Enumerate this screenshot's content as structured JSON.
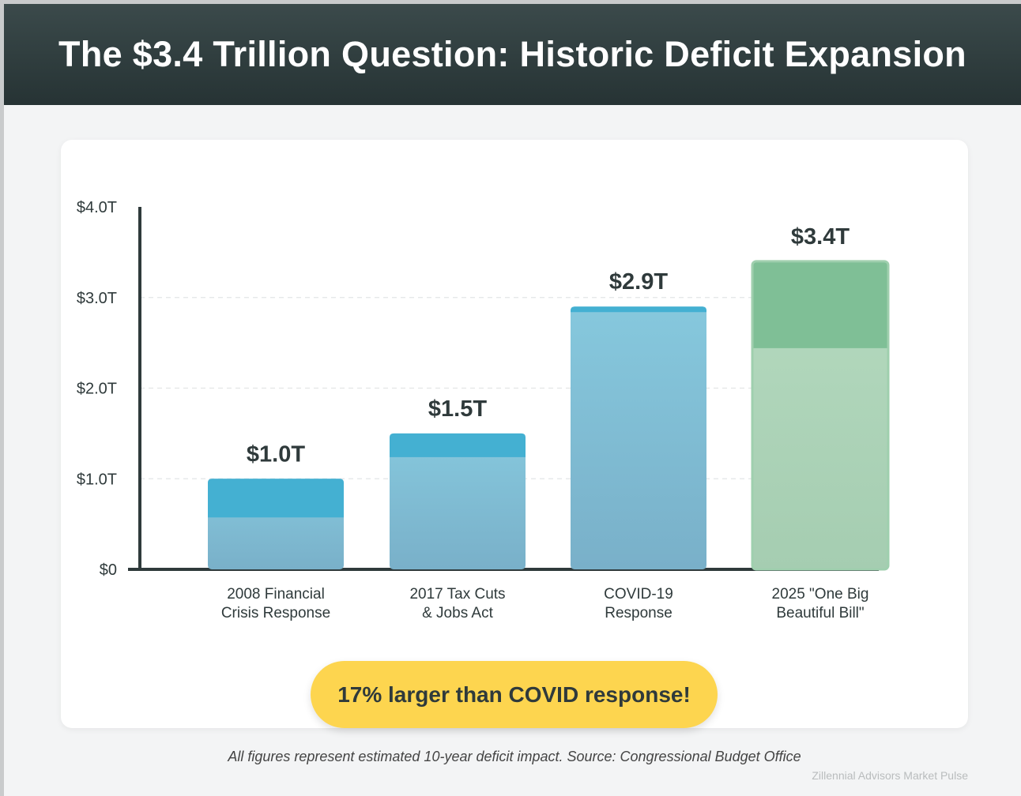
{
  "header": {
    "title": "The $3.4 Trillion Question: Historic Deficit Expansion"
  },
  "chart_data": {
    "type": "bar",
    "categories": [
      [
        "2008 Financial",
        "Crisis Response"
      ],
      [
        "2017 Tax Cuts",
        "& Jobs Act"
      ],
      [
        "COVID-19",
        "Response"
      ],
      [
        "2025 \"One Big",
        "Beautiful Bill\""
      ]
    ],
    "values": [
      1.0,
      1.5,
      2.9,
      3.4
    ],
    "value_labels": [
      "$1.0T",
      "$1.5T",
      "$2.9T",
      "$3.4T"
    ],
    "yticks": [
      0,
      1,
      2,
      3,
      4
    ],
    "ytick_labels": [
      "$0",
      "$1.0T",
      "$2.0T",
      "$3.0T",
      "$4.0T"
    ],
    "ylim": [
      0,
      4
    ],
    "grid": true,
    "colors": {
      "blue_top": "#44b0d2",
      "blue_body": "#86c8dd",
      "blue_bottom": "#79b0c9",
      "green_top": "#7fbf96",
      "green_body": "#b5dabf",
      "green_bottom": "#a5cdb1",
      "axis": "#2f3a3b",
      "label": "#2f3a3b"
    }
  },
  "callout": {
    "text": "17% larger than COVID response!"
  },
  "footnote": "All figures represent estimated 10-year deficit impact. Source: Congressional Budget Office",
  "brand": "Zillennial Advisors Market Pulse"
}
